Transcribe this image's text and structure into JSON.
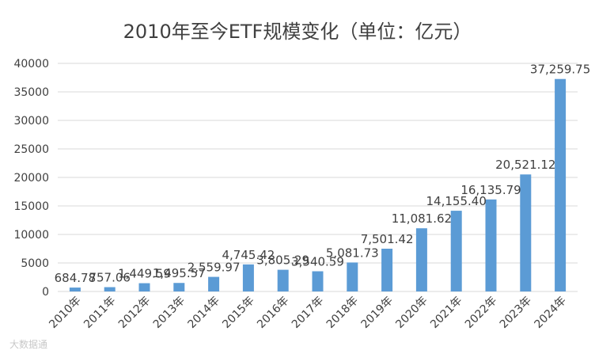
{
  "chart_data": {
    "type": "bar",
    "title": "2010年至今ETF规模变化（单位：亿元）",
    "categories": [
      "2010年",
      "2011年",
      "2012年",
      "2013年",
      "2014年",
      "2015年",
      "2016年",
      "2017年",
      "2018年",
      "2019年",
      "2020年",
      "2021年",
      "2022年",
      "2023年",
      "2024年"
    ],
    "values": [
      684.78,
      757.06,
      1449.59,
      1495.57,
      2559.97,
      4745.42,
      3805.29,
      3540.59,
      5081.73,
      7501.42,
      11081.62,
      14155.4,
      16135.79,
      20521.12,
      37259.75
    ],
    "data_labels": [
      "684.78",
      "757.06",
      "1,449.59",
      "1,495.57",
      "2,559.97",
      "4,745.42",
      "3,805.29",
      "3,540.59",
      "5,081.73",
      "7,501.42",
      "11,081.62",
      "14,155.40",
      "16,135.79",
      "20,521.12",
      "37,259.75"
    ],
    "yticks": [
      "0",
      "5000",
      "10000",
      "15000",
      "20000",
      "25000",
      "30000",
      "35000",
      "40000"
    ],
    "ylim": [
      0,
      40000
    ],
    "grid": true,
    "legend": "none",
    "bar_color": "#5b9bd5"
  },
  "watermark": "大数据通"
}
